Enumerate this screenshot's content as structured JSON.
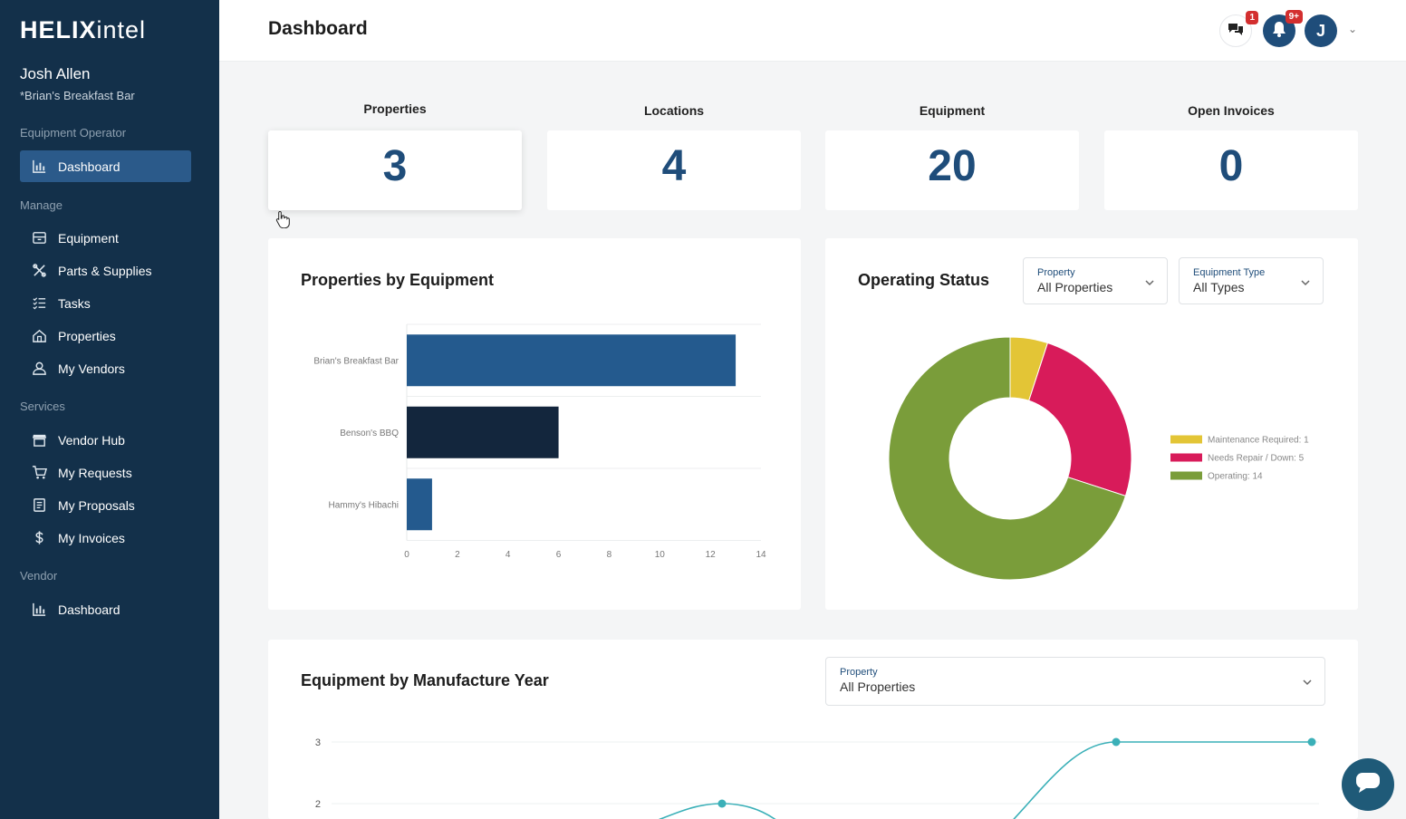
{
  "app": {
    "logo_bold": "HELIX",
    "logo_light": "intel"
  },
  "user": {
    "name": "Josh Allen",
    "organization": "*Brian's Breakfast Bar"
  },
  "sidebar": {
    "sections": [
      {
        "label": "Equipment Operator"
      },
      {
        "label": "Manage"
      },
      {
        "label": "Services"
      },
      {
        "label": "Vendor"
      }
    ],
    "items": [
      {
        "label": "Dashboard",
        "icon": "bar-chart-icon"
      },
      {
        "label": "Equipment",
        "icon": "box-icon"
      },
      {
        "label": "Parts & Supplies",
        "icon": "tools-icon"
      },
      {
        "label": "Tasks",
        "icon": "task-list-icon"
      },
      {
        "label": "Properties",
        "icon": "property-icon"
      },
      {
        "label": "My Vendors",
        "icon": "vendor-icon"
      },
      {
        "label": "Vendor Hub",
        "icon": "storefront-icon"
      },
      {
        "label": "My Requests",
        "icon": "cart-icon"
      },
      {
        "label": "My Proposals",
        "icon": "proposal-icon"
      },
      {
        "label": "My Invoices",
        "icon": "dollar-icon"
      },
      {
        "label": "Dashboard",
        "icon": "bar-chart-icon"
      }
    ]
  },
  "header": {
    "title": "Dashboard",
    "chat_badge": "1",
    "notification_badge": "9+",
    "avatar_initial": "J"
  },
  "stats": [
    {
      "label": "Properties",
      "value": "3"
    },
    {
      "label": "Locations",
      "value": "4"
    },
    {
      "label": "Equipment",
      "value": "20"
    },
    {
      "label": "Open Invoices",
      "value": "0"
    }
  ],
  "properties_panel": {
    "title": "Properties by Equipment"
  },
  "status_panel": {
    "title": "Operating Status",
    "property_filter": {
      "label": "Property",
      "value": "All Properties"
    },
    "type_filter": {
      "label": "Equipment Type",
      "value": "All Types"
    }
  },
  "year_panel": {
    "title": "Equipment by Manufacture Year",
    "property_filter": {
      "label": "Property",
      "value": "All Properties"
    }
  },
  "colors": {
    "brand": "#1f4d7a",
    "sidebar": "#13304a",
    "maintenance": "#e3c536",
    "repair": "#d81b5a",
    "operating": "#7a9d3a",
    "line": "#3bb0b8"
  },
  "chart_data": [
    {
      "type": "bar",
      "orientation": "horizontal",
      "title": "Properties by Equipment",
      "categories": [
        "Brian's Breakfast Bar",
        "Benson's BBQ",
        "Hammy's Hibachi"
      ],
      "values": [
        13,
        6,
        1
      ],
      "colors": [
        "#245a8e",
        "#13263d",
        "#245a8e"
      ],
      "xlim": [
        0,
        14
      ],
      "xticks": [
        0,
        2,
        4,
        6,
        8,
        10,
        12,
        14
      ]
    },
    {
      "type": "pie",
      "variant": "donut",
      "title": "Operating Status",
      "slices": [
        {
          "label": "Maintenance Required",
          "value": 1,
          "legend": "Maintenance Required: 1"
        },
        {
          "label": "Needs Repair / Down",
          "value": 5,
          "legend": "Needs Repair / Down: 5"
        },
        {
          "label": "Operating",
          "value": 14,
          "legend": "Operating: 14"
        }
      ],
      "legend_position": "right"
    },
    {
      "type": "line",
      "title": "Equipment by Manufacture Year",
      "yticks": [
        "3",
        "2"
      ],
      "points_visible": [
        {
          "index": 2,
          "value": 2
        },
        {
          "index": 4,
          "value": 3
        },
        {
          "index": 5,
          "value": 3
        }
      ]
    }
  ]
}
